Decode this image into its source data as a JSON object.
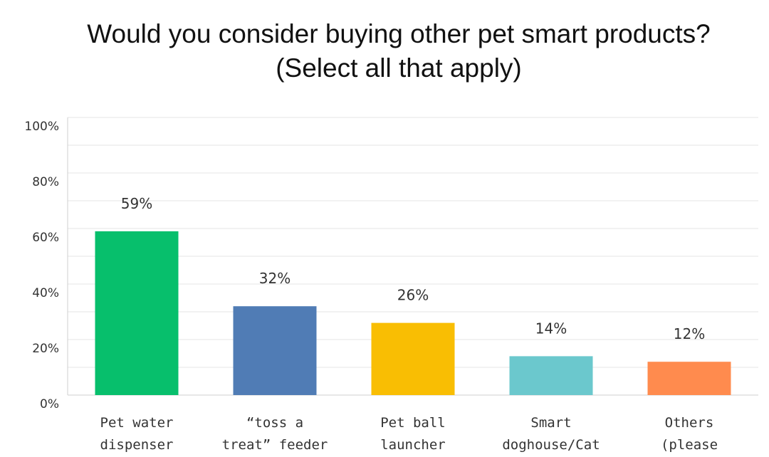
{
  "title": {
    "line1": "Would you consider buying other pet smart products?",
    "line2": "(Select all that apply)"
  },
  "chart_data": {
    "type": "bar",
    "title": "Would you consider buying other pet smart products? (Select all that apply)",
    "categories": [
      [
        "Pet water",
        "dispenser"
      ],
      [
        "“toss a",
        "treat” feeder"
      ],
      [
        "Pet ball",
        "launcher"
      ],
      [
        "Smart",
        "doghouse/Cat"
      ],
      [
        "Others",
        "(please"
      ]
    ],
    "values": [
      59,
      32,
      26,
      14,
      12
    ],
    "value_labels": [
      "59%",
      "32%",
      "26%",
      "14%",
      "12%"
    ],
    "colors": [
      "#07bf6c",
      "#507cb5",
      "#f9be03",
      "#6bc8cd",
      "#ff8b4e"
    ],
    "ylim": [
      0,
      100
    ],
    "yticks": [
      0,
      20,
      40,
      60,
      80,
      100
    ],
    "ytick_labels": [
      "0%",
      "20%",
      "40%",
      "60%",
      "80%",
      "100%"
    ],
    "grid": true,
    "xlabel": "",
    "ylabel": ""
  }
}
